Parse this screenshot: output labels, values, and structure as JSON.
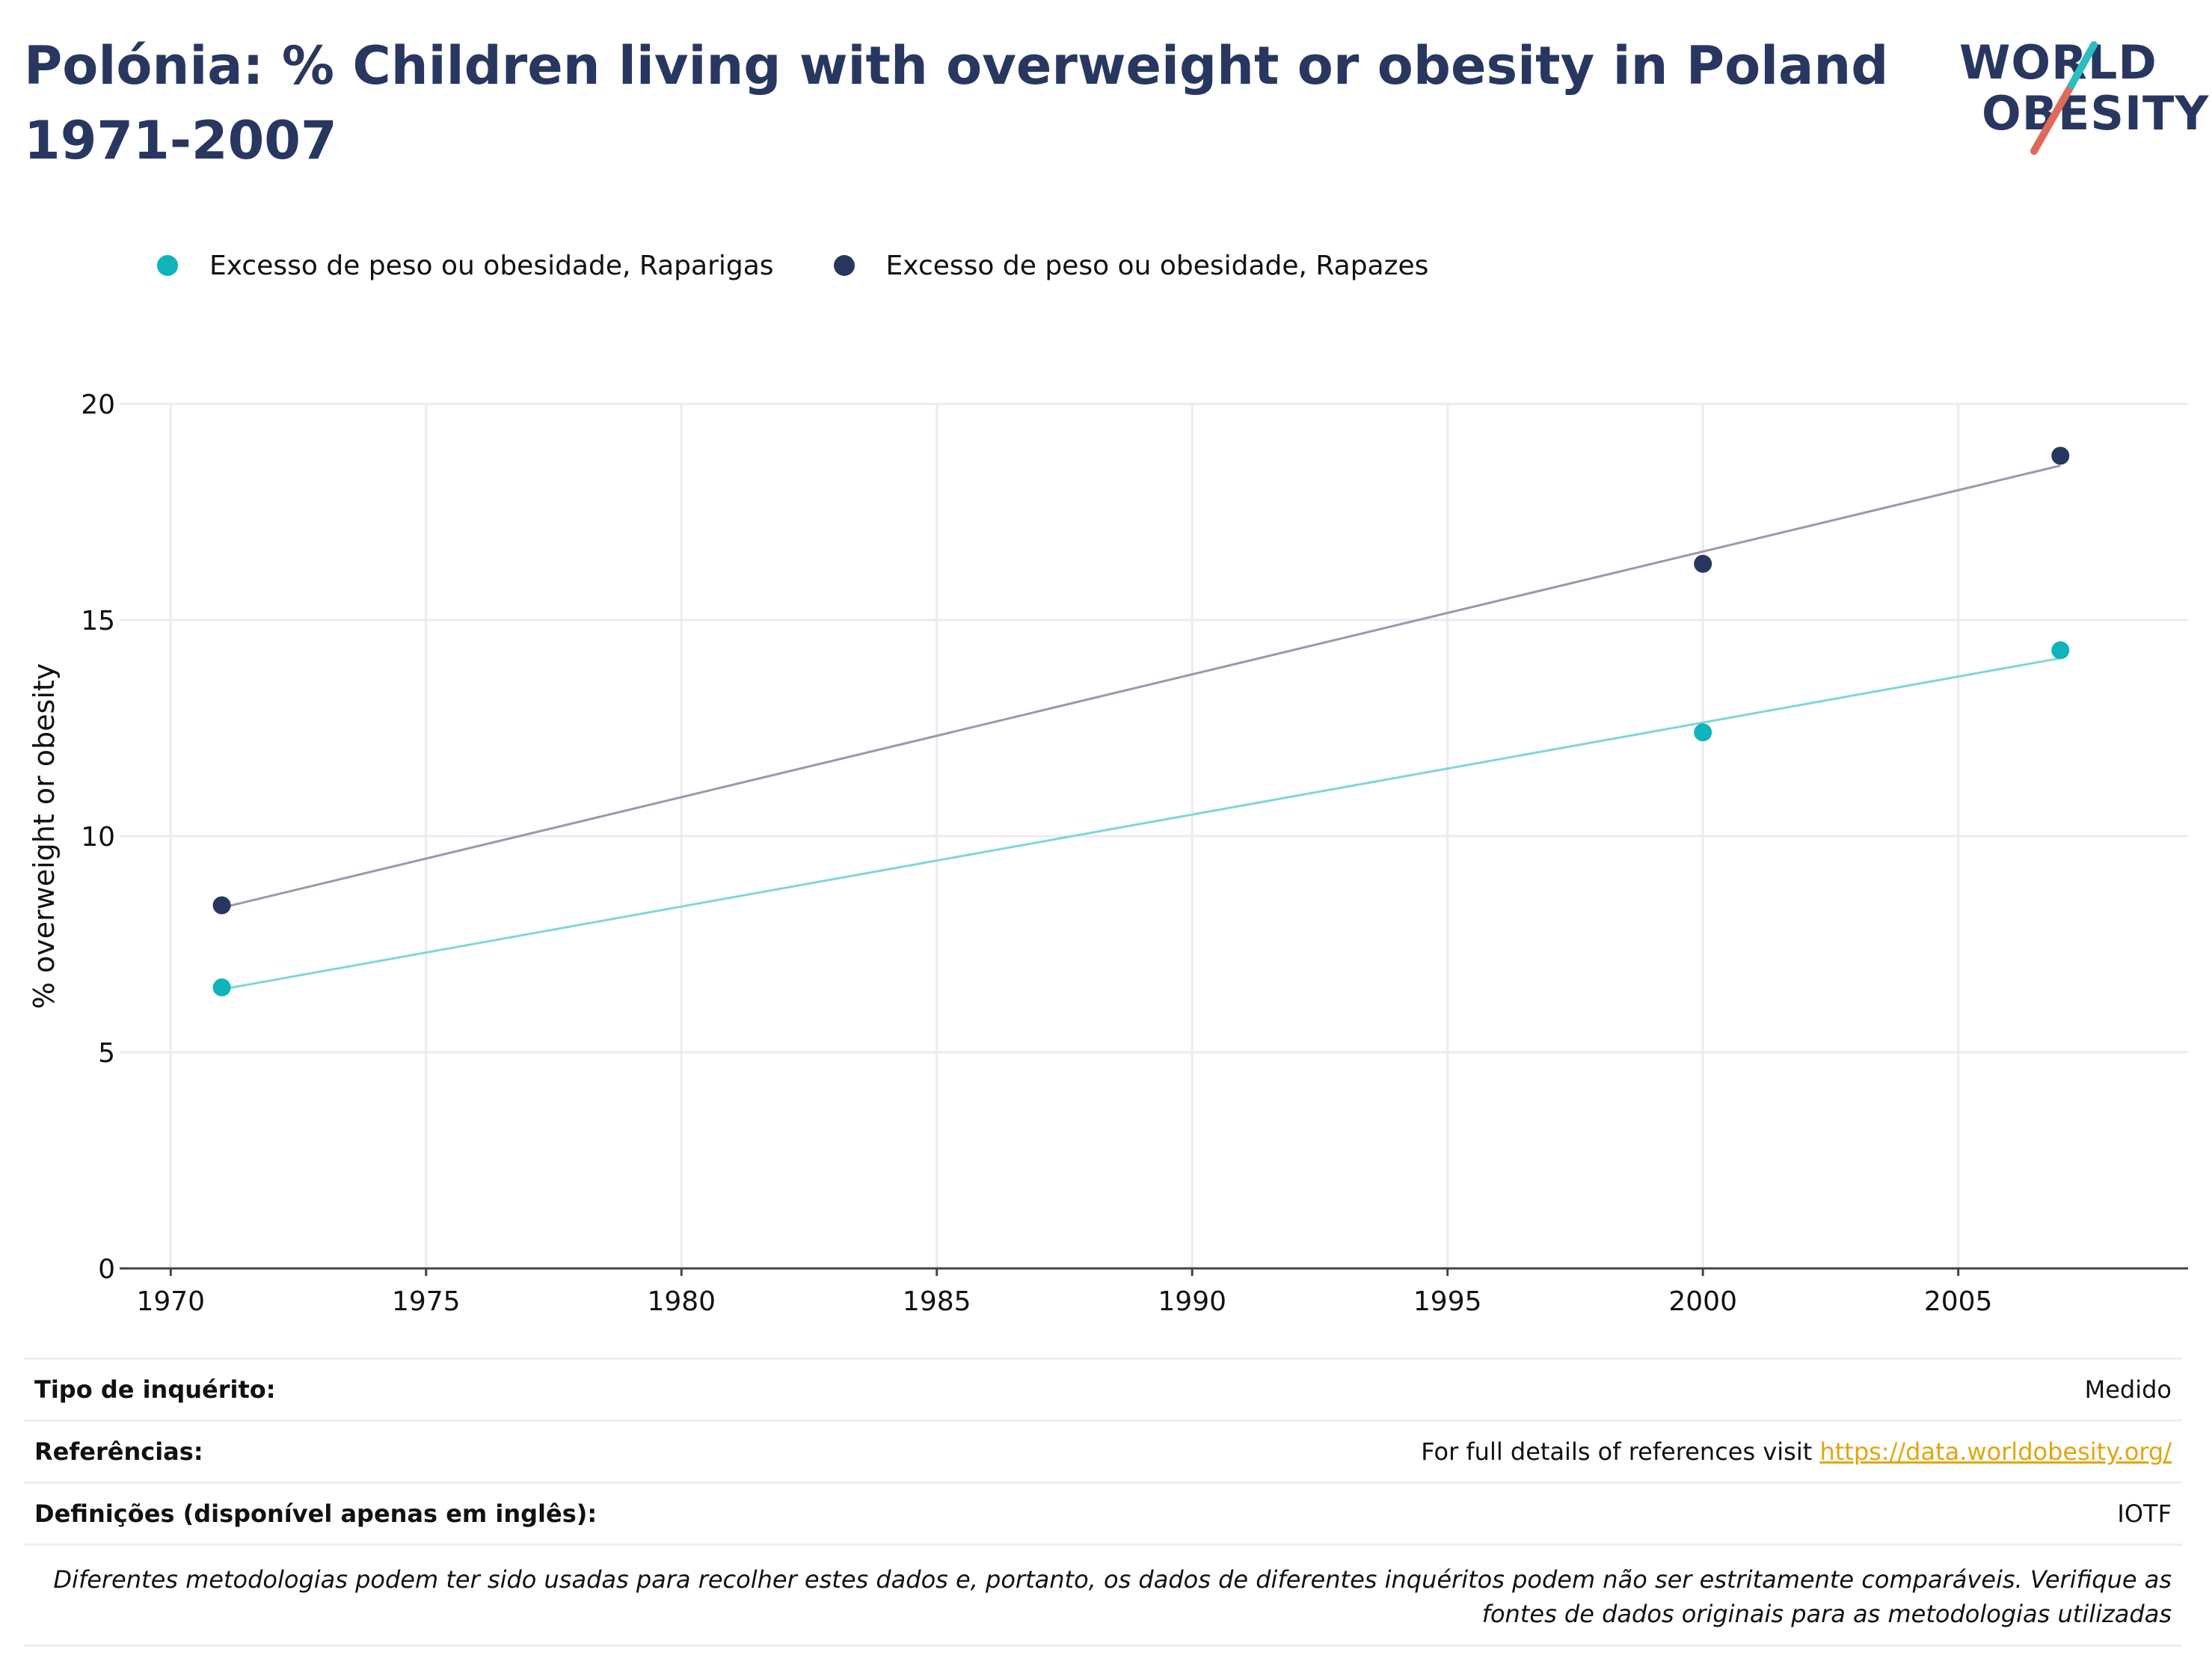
{
  "header": {
    "title": "Polónia: % Children living with overweight or obesity in Poland 1971-2007"
  },
  "logo": {
    "line1": "WORLD",
    "line2": "OBESITY",
    "accent_color": "#e06a5a",
    "accent_color_2": "#2bbdc0",
    "text_color": "#283760"
  },
  "chart_data": {
    "type": "scatter",
    "title": "Polónia: % Children living with overweight or obesity in Poland 1971-2007",
    "xlabel": "",
    "ylabel": "% overweight or obesity",
    "xlim": [
      1969,
      2009.5
    ],
    "ylim": [
      0,
      20
    ],
    "xticks": [
      1970,
      1975,
      1980,
      1985,
      1990,
      1995,
      2000,
      2005
    ],
    "yticks": [
      0,
      5,
      10,
      15,
      20
    ],
    "grid": true,
    "legend_position": "top-left",
    "trendlines": true,
    "series": [
      {
        "name": "Excesso de peso ou obesidade, Raparigas",
        "color": "#0fb4bb",
        "trend_color": "#7fd6da",
        "points": [
          {
            "x": 1971,
            "y": 6.5
          },
          {
            "x": 2000,
            "y": 12.4
          },
          {
            "x": 2007,
            "y": 14.3
          }
        ]
      },
      {
        "name": "Excesso de peso ou obesidade, Rapazes",
        "color": "#283760",
        "trend_color": "#9a98ad",
        "points": [
          {
            "x": 1971,
            "y": 8.4
          },
          {
            "x": 2000,
            "y": 16.3
          },
          {
            "x": 2007,
            "y": 18.8
          }
        ]
      }
    ]
  },
  "meta": {
    "survey_type": {
      "label": "Tipo de inquérito:",
      "value": "Medido"
    },
    "references": {
      "label": "Referências:",
      "prefix": "For full details of references visit",
      "link_text": "https://data.worldobesity.org/"
    },
    "definitions": {
      "label": "Definições (disponível apenas em inglês):",
      "value": "IOTF"
    },
    "note": "Diferentes metodologias podem ter sido usadas para recolher estes dados e, portanto, os dados de diferentes inquéritos podem não ser estritamente comparáveis. Verifique as fontes de dados originais para as metodologias utilizadas"
  }
}
